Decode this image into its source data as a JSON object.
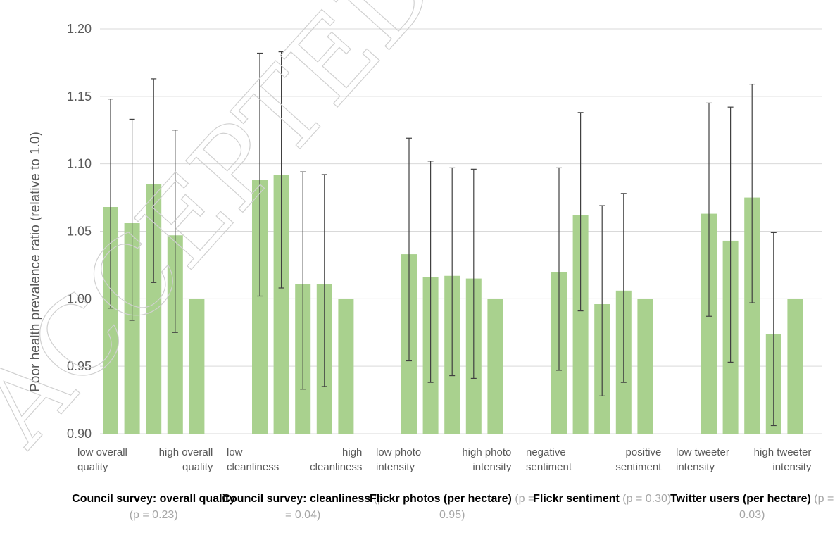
{
  "chart_data": {
    "type": "bar",
    "ylabel": "Poor health prevalence  ratio (relative to 1.0)",
    "ylim": [
      0.9,
      1.2
    ],
    "yticks": [
      "0.90",
      "0.95",
      "1.00",
      "1.05",
      "1.10",
      "1.15",
      "1.20"
    ],
    "grid": true,
    "bar_color": "#a9d18e",
    "error_bar_color": "#404040",
    "watermark": "ACCEPTED MANUSCRIPT",
    "groups": [
      {
        "name": "Council survey: overall quality",
        "p_text": "(p = 0.23)",
        "label_low": "low overall quality",
        "label_high": "high overall quality",
        "values": [
          1.068,
          1.056,
          1.085,
          1.047,
          1.0
        ],
        "err_low": [
          0.993,
          0.984,
          1.012,
          0.975,
          null
        ],
        "err_high": [
          1.148,
          1.133,
          1.163,
          1.125,
          null
        ]
      },
      {
        "name": "Council survey: cleanliness",
        "p_text": "(p = 0.04)",
        "label_low": "low cleanliness",
        "label_high": "high cleanliness",
        "values": [
          1.088,
          1.092,
          1.011,
          1.011,
          1.0
        ],
        "err_low": [
          1.002,
          1.008,
          0.933,
          0.935,
          null
        ],
        "err_high": [
          1.182,
          1.183,
          1.094,
          1.092,
          null
        ]
      },
      {
        "name": "Flickr photos (per hectare)",
        "p_text": "(p = 0.95)",
        "label_low": "low photo intensity",
        "label_high": "high photo intensity",
        "values": [
          1.033,
          1.016,
          1.017,
          1.015,
          1.0
        ],
        "err_low": [
          0.954,
          0.938,
          0.943,
          0.941,
          null
        ],
        "err_high": [
          1.119,
          1.102,
          1.097,
          1.096,
          null
        ]
      },
      {
        "name": "Flickr sentiment",
        "p_text": "(p = 0.30)",
        "label_low": "negative sentiment",
        "label_high": "positive sentiment",
        "values": [
          1.02,
          1.062,
          0.996,
          1.006,
          1.0
        ],
        "err_low": [
          0.947,
          0.991,
          0.928,
          0.938,
          null
        ],
        "err_high": [
          1.097,
          1.138,
          1.069,
          1.078,
          null
        ]
      },
      {
        "name": "Twitter users (per hectare)",
        "p_text": "(p = 0.03)",
        "label_low": "low tweeter intensity",
        "label_high": "high tweeter intensity",
        "values": [
          1.063,
          1.043,
          1.075,
          0.974,
          1.0
        ],
        "err_low": [
          0.987,
          0.953,
          0.997,
          0.906,
          null
        ],
        "err_high": [
          1.145,
          1.142,
          1.159,
          1.049,
          null
        ]
      }
    ]
  }
}
